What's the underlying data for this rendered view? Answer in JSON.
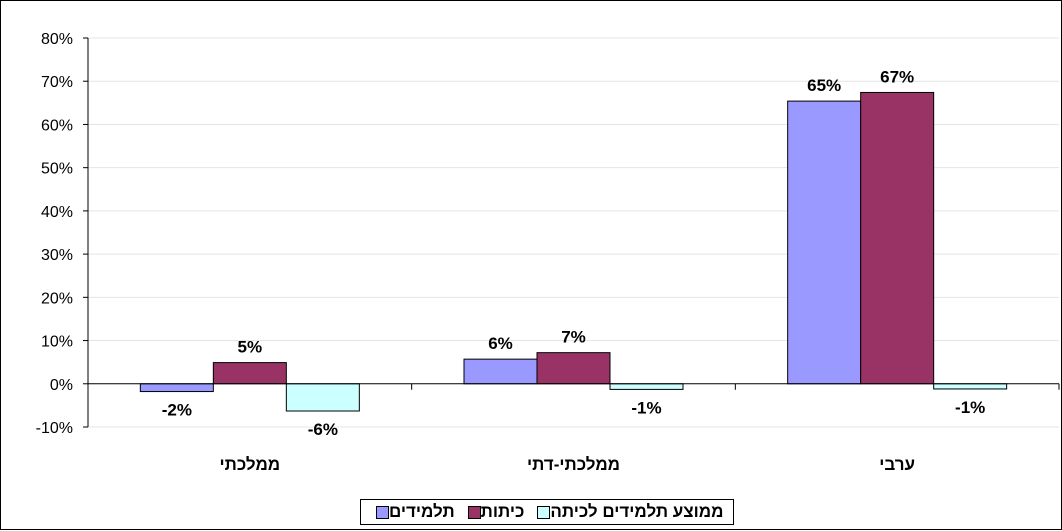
{
  "chart_data": {
    "type": "bar",
    "categories": [
      "ממלכתי",
      "ממלכתי-דתי",
      "ערבי"
    ],
    "series": [
      {
        "name": "תלמידים",
        "color": "#9999ff",
        "values": [
          -1.8,
          5.7,
          65.4
        ],
        "labels": [
          "-2%",
          "6%",
          "65%"
        ]
      },
      {
        "name": "כיתות",
        "color": "#993366",
        "values": [
          4.9,
          7.2,
          67.4
        ],
        "labels": [
          "5%",
          "7%",
          "67%"
        ]
      },
      {
        "name": "ממוצע תלמידים לכיתה",
        "color": "#ccffff",
        "values": [
          -6.3,
          -1.3,
          -1.2
        ],
        "labels": [
          "-6%",
          "-1%",
          "-1%"
        ]
      }
    ],
    "yticks": [
      "80%",
      "70%",
      "60%",
      "50%",
      "40%",
      "30%",
      "20%",
      "10%",
      "0%",
      "-10%"
    ],
    "ylim": [
      -10,
      80
    ],
    "grid": true,
    "legend_position": "bottom"
  }
}
